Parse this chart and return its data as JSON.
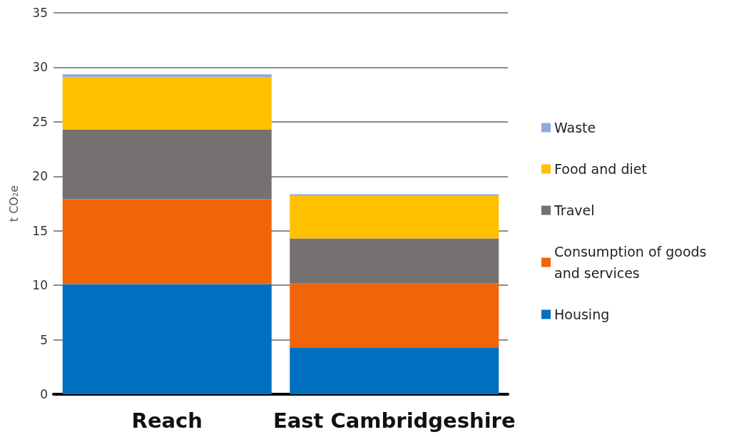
{
  "chart_data": {
    "type": "bar",
    "stacked": true,
    "ylabel": "t CO₂e",
    "categories": [
      "Reach",
      "East Cambridgeshire"
    ],
    "series": [
      {
        "name": "Housing",
        "color": "#0070c0",
        "values": [
          10.1,
          4.3
        ]
      },
      {
        "name": "Consumption of goods and services",
        "color": "#f1650a",
        "values": [
          7.8,
          5.85
        ]
      },
      {
        "name": "Travel",
        "color": "#767171",
        "values": [
          6.4,
          4.15
        ]
      },
      {
        "name": "Food and diet",
        "color": "#ffc000",
        "values": [
          4.8,
          3.9
        ]
      },
      {
        "name": "Waste",
        "color": "#8faadc",
        "values": [
          0.25,
          0.15
        ]
      }
    ],
    "ylim": [
      0,
      35
    ],
    "yticks": [
      0,
      5,
      10,
      15,
      20,
      25,
      30,
      35
    ],
    "grid": "y",
    "legend": "right"
  }
}
